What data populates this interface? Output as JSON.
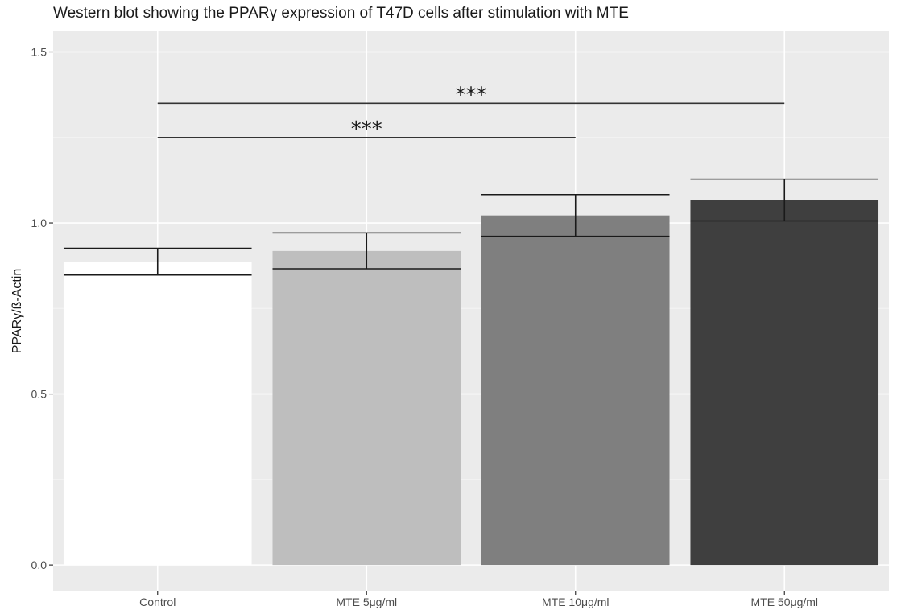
{
  "chart_data": {
    "type": "bar",
    "title": "Western blot showing the PPARγ expression of T47D cells after stimulation with MTE",
    "xlabel": "",
    "ylabel": "PPARγ/ß-Actin",
    "categories": [
      "Control",
      "MTE 5μg/ml",
      "MTE 10μg/ml",
      "MTE 50μg/ml"
    ],
    "values": [
      0.887,
      0.918,
      1.022,
      1.067
    ],
    "error_low": [
      0.848,
      0.866,
      0.961,
      1.006
    ],
    "error_high": [
      0.926,
      0.971,
      1.083,
      1.128
    ],
    "bar_colors": [
      "#ffffff",
      "#bebebe",
      "#7f7f7f",
      "#3f3f3f"
    ],
    "ylim": [
      -0.075,
      1.56
    ],
    "yticks": [
      0.0,
      0.5,
      1.0,
      1.5
    ],
    "ytick_labels": [
      "0.0",
      "0.5",
      "1.0",
      "1.5"
    ],
    "grid": true,
    "panel_background": "#ebebeb",
    "significance": [
      {
        "from": "Control",
        "to": "MTE 10μg/ml",
        "y": 1.25,
        "label": "***"
      },
      {
        "from": "Control",
        "to": "MTE 50μg/ml",
        "y": 1.35,
        "label": "***"
      }
    ]
  }
}
